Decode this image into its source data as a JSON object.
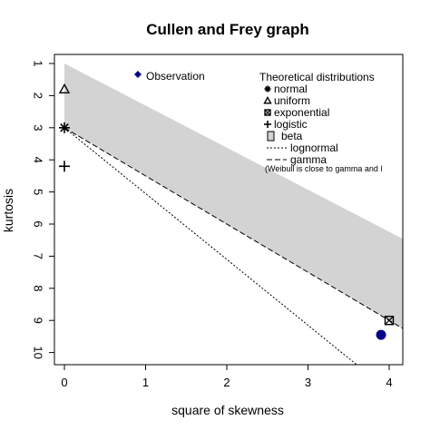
{
  "chart_data": {
    "type": "scatter",
    "title": "Cullen and Frey graph",
    "xlabel": "square of skewness",
    "ylabel": "kurtosis",
    "xlim": [
      0,
      4
    ],
    "ylim": [
      10,
      1
    ],
    "x_ticks": [
      "0",
      "1",
      "2",
      "3",
      "4"
    ],
    "y_ticks": [
      "1",
      "2",
      "3",
      "4",
      "5",
      "6",
      "7",
      "8",
      "9",
      "10"
    ],
    "observation": {
      "label": "Observation",
      "x": 3.9,
      "y": 9.45,
      "color": "#00008b"
    },
    "normal": {
      "x": 0,
      "y": 3
    },
    "uniform": {
      "x": 0,
      "y": 1.8
    },
    "logistic": {
      "x": 0,
      "y": 4.2
    },
    "exponential": {
      "x": 4,
      "y": 9
    },
    "beta_region_color": "#d3d3d3",
    "legend_title": "Theoretical distributions",
    "legend_items": [
      "normal",
      "uniform",
      "exponential",
      "logistic",
      "beta",
      "lognormal",
      "gamma"
    ],
    "note": "(Weibull is close to gamma and l"
  }
}
